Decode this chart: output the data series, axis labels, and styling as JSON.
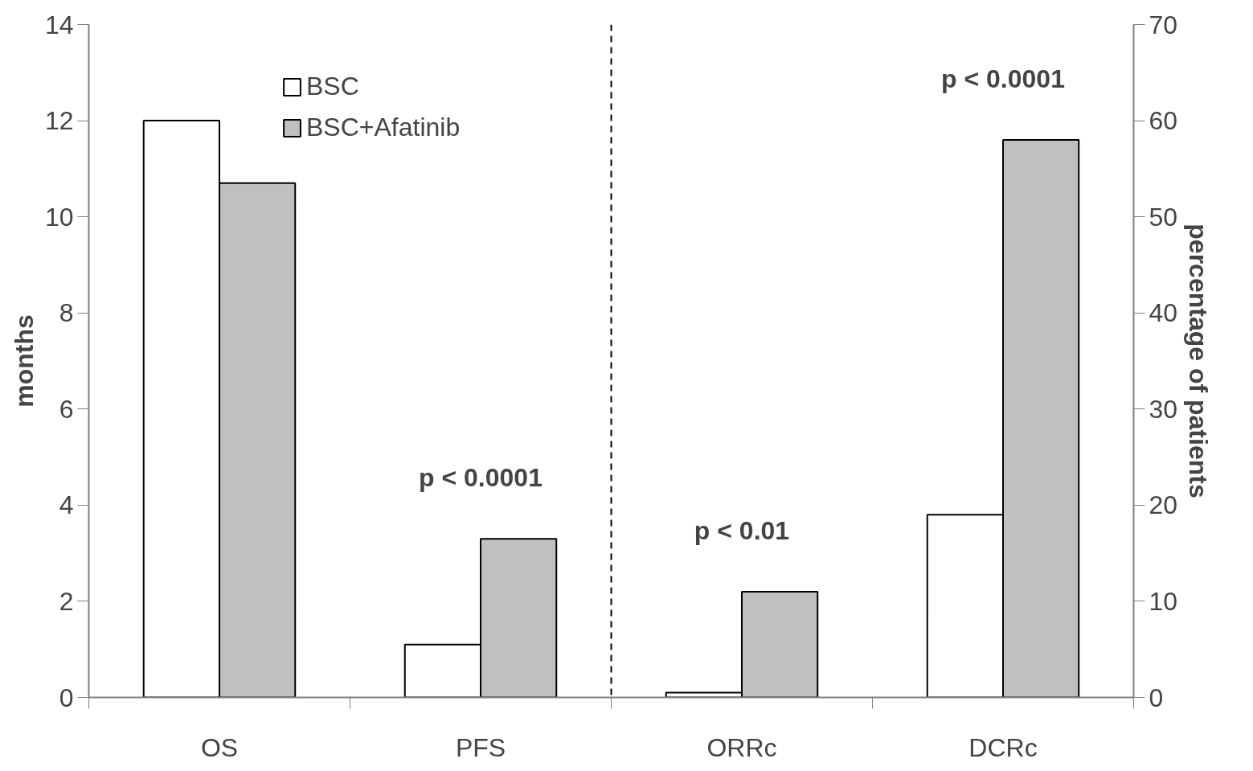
{
  "chart_data": {
    "type": "bar",
    "categories": [
      "OS",
      "PFS",
      "ORRc",
      "DCRc"
    ],
    "series": [
      {
        "name": "BSC",
        "color": "#ffffff",
        "values": [
          12.0,
          1.1,
          null,
          null
        ]
      },
      {
        "name": "BSC+Afatinib",
        "color": "#c0c0c0",
        "values": [
          10.7,
          3.3,
          null,
          null
        ]
      },
      {
        "color": "#ffffff",
        "axis": "y2",
        "values": [
          null,
          null,
          0.5,
          19
        ]
      },
      {
        "color": "#c0c0c0",
        "axis": "y2",
        "values": [
          null,
          null,
          11,
          58
        ]
      }
    ],
    "ylabel": "months",
    "y2label": "percentage of patients",
    "ylim": [
      0,
      14
    ],
    "yticks": [
      0,
      2,
      4,
      6,
      8,
      10,
      12,
      14
    ],
    "y2lim": [
      0,
      70
    ],
    "y2ticks": [
      0,
      10,
      20,
      30,
      40,
      50,
      60,
      70
    ],
    "annotations": [
      "p < 0.0001",
      "p < 0.01",
      "p < 0.0001"
    ],
    "legend": "top",
    "grid": false
  }
}
